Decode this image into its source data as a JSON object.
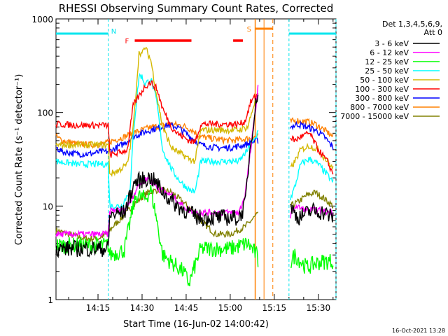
{
  "chart_data": {
    "type": "line",
    "title": "RHESSI Observing Summary Count Rates, Corrected",
    "xlabel": "Start Time (16-Jun-02 14:00:42)",
    "ylabel": "Corrected Count Rate (s⁻¹ detector⁻¹)",
    "y_scale": "log",
    "ylim": [
      1,
      1000
    ],
    "xlim_minutes": [
      0.7,
      96
    ],
    "x_ticks": [
      {
        "m": 15,
        "label": "14:15"
      },
      {
        "m": 30,
        "label": "14:30"
      },
      {
        "m": 45,
        "label": "14:45"
      },
      {
        "m": 60,
        "label": "15:00"
      },
      {
        "m": 75,
        "label": "15:15"
      },
      {
        "m": 90,
        "label": "15:30"
      }
    ],
    "y_ticks": [
      {
        "v": 1,
        "label": "1"
      },
      {
        "v": 10,
        "label": "10"
      },
      {
        "v": 100,
        "label": "100"
      },
      {
        "v": 1000,
        "label": "1000"
      }
    ],
    "legend": {
      "header_line1": "Det 1,3,4,5,6,9,",
      "header_line2": "Att 0",
      "placement": "right"
    },
    "annotations": {
      "night_label": "N",
      "flare_label": "F",
      "saa_label": "S",
      "date_stamp": "16-Oct-2021 13:28"
    },
    "markers": {
      "night": [
        [
          0.7,
          18.5
        ],
        [
          80,
          96
        ]
      ],
      "flare": [
        [
          27.5,
          46.8
        ],
        [
          61,
          64.3
        ]
      ],
      "saa": [
        68.5,
        74.5
      ],
      "saa_boundary": 71.5,
      "night_boundaries": [
        18.5,
        80,
        96
      ]
    },
    "series": [
      {
        "name": "3 - 6 keV",
        "color": "#000000",
        "points": [
          [
            0.7,
            3.5
          ],
          [
            12,
            3.5
          ],
          [
            18.5,
            3.5
          ],
          [
            19,
            8
          ],
          [
            24,
            8.5
          ],
          [
            27.5,
            18
          ],
          [
            30,
            19
          ],
          [
            33,
            20
          ],
          [
            36,
            16
          ],
          [
            38,
            13
          ],
          [
            42,
            10
          ],
          [
            46,
            8.5
          ],
          [
            49,
            7.5
          ],
          [
            50,
            7.5
          ],
          [
            55,
            7.5
          ],
          [
            60,
            7.5
          ],
          [
            63,
            7.5
          ],
          [
            65,
            10
          ],
          [
            67,
            50
          ],
          [
            69.5,
            180
          ],
          [
            80.5,
            10
          ],
          [
            83,
            7.5
          ],
          [
            88,
            9
          ],
          [
            92,
            8.5
          ],
          [
            95,
            7.5
          ]
        ]
      },
      {
        "name": "6 - 12 keV",
        "color": "#ff00ff",
        "points": [
          [
            0.7,
            5
          ],
          [
            12,
            5
          ],
          [
            18.5,
            5
          ],
          [
            19,
            9
          ],
          [
            24,
            9
          ],
          [
            27,
            13
          ],
          [
            29,
            17
          ],
          [
            32,
            20
          ],
          [
            36,
            15
          ],
          [
            40,
            13
          ],
          [
            44,
            10
          ],
          [
            46,
            9
          ],
          [
            49,
            8.5
          ],
          [
            50,
            8.5
          ],
          [
            55,
            8.5
          ],
          [
            60,
            8.5
          ],
          [
            63,
            8.5
          ],
          [
            65,
            13
          ],
          [
            67,
            40
          ],
          [
            69.5,
            190
          ],
          [
            80.5,
            8
          ],
          [
            82,
            10
          ],
          [
            86,
            9
          ],
          [
            90,
            9
          ],
          [
            95,
            8.5
          ]
        ]
      },
      {
        "name": "12 - 25 keV",
        "color": "#00ff00",
        "points": [
          [
            0.7,
            3.8
          ],
          [
            12,
            3.8
          ],
          [
            18.5,
            3.8
          ],
          [
            19,
            3
          ],
          [
            24,
            3.4
          ],
          [
            27,
            10
          ],
          [
            28,
            13
          ],
          [
            31,
            12
          ],
          [
            33,
            15
          ],
          [
            35,
            7
          ],
          [
            37,
            3
          ],
          [
            40,
            2.5
          ],
          [
            44,
            2
          ],
          [
            46,
            1.5
          ],
          [
            50,
            3.5
          ],
          [
            60,
            3.5
          ],
          [
            66,
            4
          ],
          [
            69,
            3
          ],
          [
            69.5,
            2.5
          ],
          [
            80.5,
            2.5
          ],
          [
            82,
            3
          ],
          [
            86,
            2.2
          ],
          [
            90,
            2.5
          ],
          [
            95,
            2.6
          ]
        ]
      },
      {
        "name": "25 - 50 keV",
        "color": "#00ffff",
        "points": [
          [
            0.7,
            30
          ],
          [
            8,
            28
          ],
          [
            12,
            28
          ],
          [
            16,
            28
          ],
          [
            18.5,
            28
          ],
          [
            19,
            10
          ],
          [
            23,
            10
          ],
          [
            26,
            15
          ],
          [
            27,
            60
          ],
          [
            29,
            250
          ],
          [
            30,
            240
          ],
          [
            31,
            200
          ],
          [
            33,
            230
          ],
          [
            35,
            130
          ],
          [
            37,
            40
          ],
          [
            40,
            25
          ],
          [
            42,
            20
          ],
          [
            44,
            17
          ],
          [
            46,
            15
          ],
          [
            48,
            14
          ],
          [
            50,
            30
          ],
          [
            55,
            30
          ],
          [
            60,
            30
          ],
          [
            63,
            30
          ],
          [
            66,
            40
          ],
          [
            69,
            55
          ],
          [
            69.5,
            70
          ],
          [
            80.5,
            12
          ],
          [
            82,
            16
          ],
          [
            84,
            28
          ],
          [
            87,
            32
          ],
          [
            90,
            28
          ],
          [
            95,
            18
          ]
        ]
      },
      {
        "name": "50 - 100 keV",
        "color": "#d4b800",
        "points": [
          [
            0.7,
            45
          ],
          [
            8,
            45
          ],
          [
            12,
            45
          ],
          [
            16,
            45
          ],
          [
            18.5,
            45
          ],
          [
            19,
            22
          ],
          [
            22,
            24
          ],
          [
            25,
            28
          ],
          [
            27,
            70
          ],
          [
            29,
            450
          ],
          [
            30,
            420
          ],
          [
            31,
            500
          ],
          [
            33,
            360
          ],
          [
            35,
            150
          ],
          [
            37,
            70
          ],
          [
            40,
            42
          ],
          [
            42,
            38
          ],
          [
            44,
            35
          ],
          [
            46,
            32
          ],
          [
            48,
            30
          ],
          [
            50,
            65
          ],
          [
            55,
            65
          ],
          [
            60,
            65
          ],
          [
            63,
            65
          ],
          [
            66,
            70
          ],
          [
            68,
            120
          ],
          [
            69.5,
            150
          ],
          [
            80.5,
            25
          ],
          [
            82,
            30
          ],
          [
            84,
            40
          ],
          [
            87,
            44
          ],
          [
            90,
            40
          ],
          [
            95,
            25
          ]
        ]
      },
      {
        "name": "100 - 300 keV",
        "color": "#ff0000",
        "points": [
          [
            0.7,
            75
          ],
          [
            8,
            73
          ],
          [
            12,
            73
          ],
          [
            16,
            73
          ],
          [
            18.5,
            73
          ],
          [
            19,
            35
          ],
          [
            22,
            37
          ],
          [
            25,
            40
          ],
          [
            27,
            120
          ],
          [
            29,
            150
          ],
          [
            31,
            190
          ],
          [
            33,
            210
          ],
          [
            35,
            180
          ],
          [
            37,
            110
          ],
          [
            40,
            70
          ],
          [
            42,
            60
          ],
          [
            44,
            55
          ],
          [
            46,
            50
          ],
          [
            48,
            48
          ],
          [
            50,
            75
          ],
          [
            55,
            75
          ],
          [
            60,
            75
          ],
          [
            63,
            75
          ],
          [
            65,
            80
          ],
          [
            67,
            130
          ],
          [
            69.5,
            160
          ],
          [
            80.5,
            55
          ],
          [
            82,
            50
          ],
          [
            84,
            55
          ],
          [
            87,
            60
          ],
          [
            90,
            40
          ],
          [
            93,
            30
          ],
          [
            95,
            22
          ]
        ]
      },
      {
        "name": "300 - 800 keV",
        "color": "#0000ff",
        "points": [
          [
            0.7,
            42
          ],
          [
            3,
            38
          ],
          [
            8,
            36
          ],
          [
            12,
            36
          ],
          [
            16,
            38
          ],
          [
            18,
            38
          ],
          [
            20,
            40
          ],
          [
            23,
            45
          ],
          [
            27,
            55
          ],
          [
            31,
            62
          ],
          [
            35,
            68
          ],
          [
            39,
            73
          ],
          [
            42,
            70
          ],
          [
            45,
            60
          ],
          [
            48,
            50
          ],
          [
            50,
            45
          ],
          [
            55,
            42
          ],
          [
            60,
            42
          ],
          [
            65,
            45
          ],
          [
            69,
            50
          ],
          [
            69.5,
            50
          ],
          [
            80.5,
            70
          ],
          [
            83,
            75
          ],
          [
            86,
            70
          ],
          [
            89,
            65
          ],
          [
            92,
            55
          ],
          [
            95,
            42
          ]
        ]
      },
      {
        "name": "800 - 7000 keV",
        "color": "#ff8000",
        "points": [
          [
            0.7,
            55
          ],
          [
            3,
            50
          ],
          [
            8,
            46
          ],
          [
            12,
            45
          ],
          [
            16,
            46
          ],
          [
            18,
            47
          ],
          [
            20,
            50
          ],
          [
            24,
            55
          ],
          [
            28,
            62
          ],
          [
            32,
            68
          ],
          [
            36,
            72
          ],
          [
            40,
            75
          ],
          [
            44,
            72
          ],
          [
            47,
            65
          ],
          [
            50,
            55
          ],
          [
            55,
            52
          ],
          [
            60,
            50
          ],
          [
            65,
            52
          ],
          [
            69,
            55
          ],
          [
            69.5,
            56
          ],
          [
            80.5,
            80
          ],
          [
            83,
            82
          ],
          [
            86,
            80
          ],
          [
            89,
            75
          ],
          [
            92,
            65
          ],
          [
            95,
            55
          ]
        ]
      },
      {
        "name": "7000 - 15000 keV",
        "color": "#808000",
        "points": [
          [
            0.7,
            5.5
          ],
          [
            5,
            5
          ],
          [
            10,
            4.5
          ],
          [
            15,
            4.5
          ],
          [
            18,
            5
          ],
          [
            20,
            6
          ],
          [
            24,
            8
          ],
          [
            28,
            11
          ],
          [
            32,
            14
          ],
          [
            36,
            15
          ],
          [
            40,
            14
          ],
          [
            44,
            11
          ],
          [
            47,
            9
          ],
          [
            50,
            7
          ],
          [
            55,
            5
          ],
          [
            60,
            5
          ],
          [
            65,
            6
          ],
          [
            69,
            8
          ],
          [
            69.5,
            8
          ],
          [
            80.5,
            10
          ],
          [
            83,
            11
          ],
          [
            86,
            13
          ],
          [
            89,
            14
          ],
          [
            92,
            12
          ],
          [
            95,
            10
          ]
        ]
      }
    ]
  }
}
